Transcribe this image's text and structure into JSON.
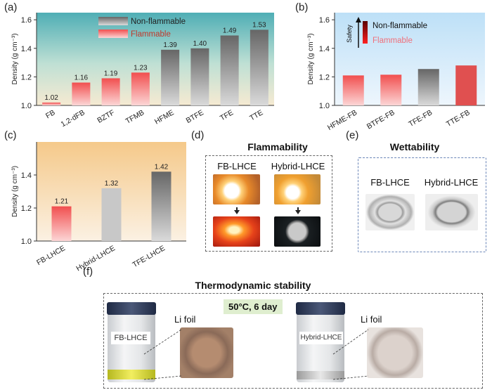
{
  "chart_data": [
    {
      "id": "a",
      "panel_label": "(a)",
      "type": "bar",
      "categories": [
        "FB",
        "1,2-dFB",
        "BZTF",
        "TFMB",
        "HFME",
        "BTFE",
        "TFE",
        "TTE"
      ],
      "values": [
        1.02,
        1.16,
        1.19,
        1.23,
        1.39,
        1.4,
        1.49,
        1.53
      ],
      "value_labels": [
        "1.02",
        "1.16",
        "1.19",
        "1.23",
        "1.39",
        "1.40",
        "1.49",
        "1.53"
      ],
      "classes": [
        "Flammable",
        "Flammable",
        "Flammable",
        "Flammable",
        "Non-flammable",
        "Non-flammable",
        "Non-flammable",
        "Non-flammable"
      ],
      "ylabel": "Density (g cm⁻³)",
      "ylim": [
        1.0,
        1.65
      ],
      "yticks": [
        "1.0",
        "1.2",
        "1.4",
        "1.6"
      ],
      "legend": [
        "Non-flammable",
        "Flammable"
      ]
    },
    {
      "id": "b",
      "panel_label": "(b)",
      "type": "bar",
      "categories": [
        "HFME-FB",
        "BTFE-FB",
        "TFE-FB",
        "TTE-FB"
      ],
      "values": [
        1.21,
        1.215,
        1.255,
        1.28
      ],
      "ylabel": "Density (g cm⁻³)",
      "ylim": [
        1.0,
        1.65
      ],
      "yticks": [
        "1.0",
        "1.2",
        "1.4",
        "1.6"
      ],
      "legend": [
        "Non-flammable",
        "Flammable"
      ],
      "safety_label": "Safety"
    },
    {
      "id": "c",
      "panel_label": "(c)",
      "type": "bar",
      "categories": [
        "FB-LHCE",
        "Hybrid-LHCE",
        "TFE-LHCE"
      ],
      "values": [
        1.21,
        1.32,
        1.42
      ],
      "value_labels": [
        "1.21",
        "1.32",
        "1.42"
      ],
      "ylabel": "Density (g cm⁻³)",
      "ylim": [
        1.0,
        1.6
      ],
      "yticks": [
        "1.0",
        "1.2",
        "1.4"
      ]
    }
  ],
  "panel_d": {
    "label": "(d)",
    "title": "Flammability",
    "left": "FB-LHCE",
    "right": "Hybrid-LHCE"
  },
  "panel_e": {
    "label": "(e)",
    "title": "Wettability",
    "left": "FB-LHCE",
    "right": "Hybrid-LHCE"
  },
  "panel_f": {
    "label": "(f)",
    "title": "Thermodynamic stability",
    "condition": "50°C, 6 day",
    "left_vial": "FB-LHCE",
    "right_vial": "Hybrid-LHCE",
    "foil_label": "Li foil"
  },
  "colors": {
    "flammable_top": "#f25a5a",
    "flammable_bottom": "#fbd3d3",
    "nonflammable_top": "#6f6f6f",
    "nonflammable_bottom": "#d9d9d9"
  }
}
